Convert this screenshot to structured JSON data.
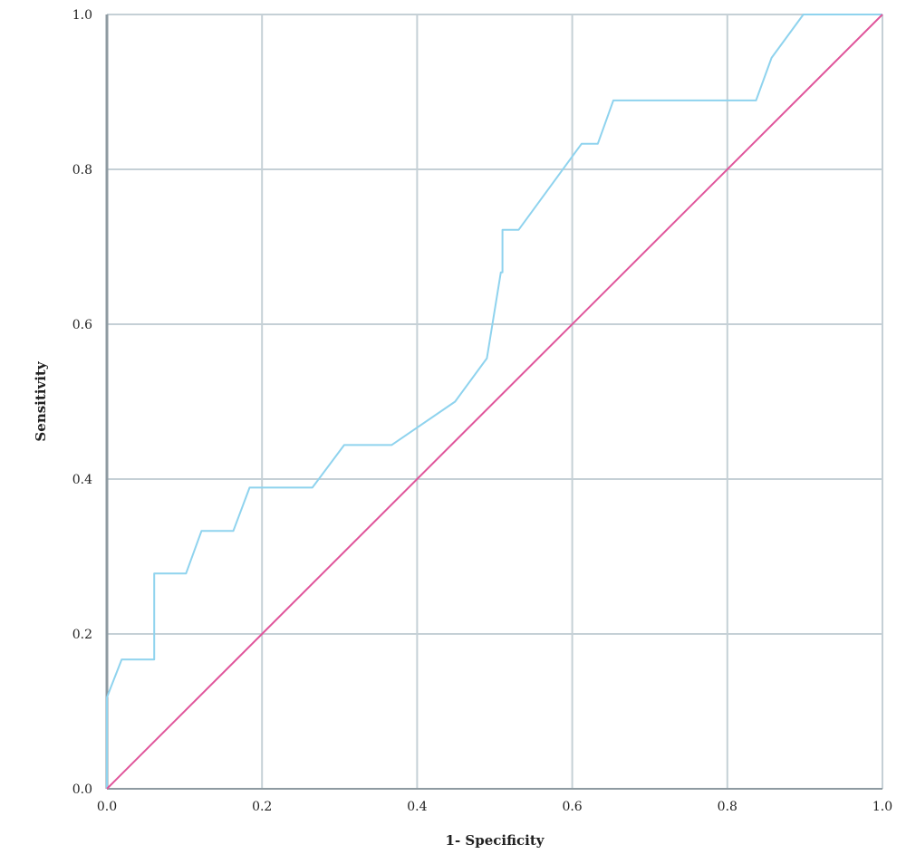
{
  "chart_data": {
    "type": "line",
    "title": "",
    "xlabel": "1- Specificity",
    "ylabel": "Sensitivity",
    "xlim": [
      0,
      1
    ],
    "ylim": [
      0,
      1
    ],
    "xticks": [
      "0.0",
      "0.2",
      "0.4",
      "0.6",
      "0.8",
      "1.0"
    ],
    "yticks": [
      "0.0",
      "0.2",
      "0.4",
      "0.6",
      "0.8",
      "1.0"
    ],
    "grid": true,
    "series": [
      {
        "color": "#8fd3ee",
        "x": [
          0.0,
          0.0,
          0.019,
          0.061,
          0.061,
          0.102,
          0.122,
          0.163,
          0.184,
          0.265,
          0.306,
          0.367,
          0.449,
          0.49,
          0.508,
          0.51,
          0.51,
          0.531,
          0.612,
          0.633,
          0.653,
          0.837,
          0.857,
          0.898,
          1.0
        ],
        "y": [
          0.0,
          0.118,
          0.167,
          0.167,
          0.278,
          0.278,
          0.333,
          0.333,
          0.389,
          0.389,
          0.444,
          0.444,
          0.5,
          0.556,
          0.667,
          0.667,
          0.722,
          0.722,
          0.833,
          0.833,
          0.889,
          0.889,
          0.944,
          1.0,
          1.0
        ]
      },
      {
        "color": "#e0559b",
        "x": [
          0,
          1
        ],
        "y": [
          0,
          1
        ]
      }
    ],
    "colors": {
      "grid": "#c5d0d6",
      "axis": "#8e9aa1"
    }
  }
}
